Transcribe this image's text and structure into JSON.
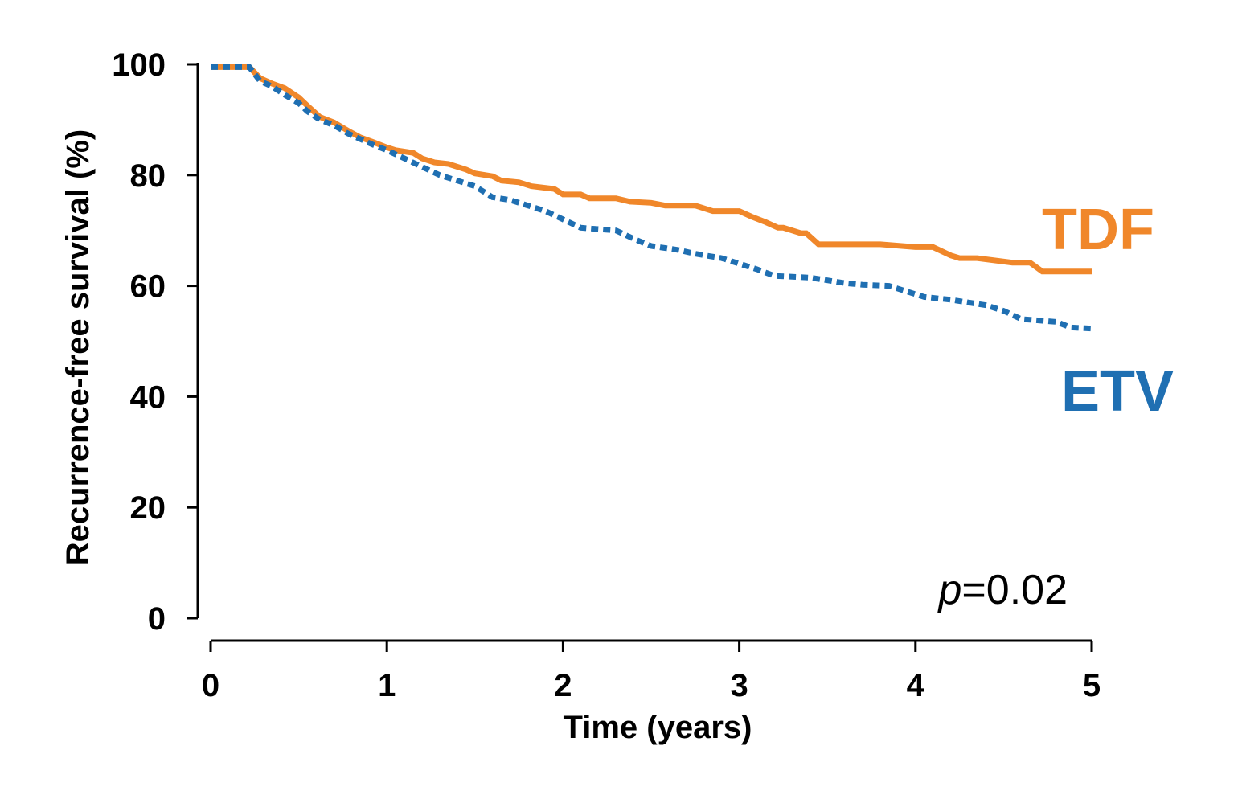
{
  "chart_data": {
    "type": "line",
    "title": "",
    "xlabel": "Time (years)",
    "ylabel": "Recurrence-free survival (%)",
    "xlim": [
      0,
      5
    ],
    "ylim": [
      0,
      100
    ],
    "xticks": [
      0,
      1,
      2,
      3,
      4,
      5
    ],
    "xtick_labels": [
      "0",
      "1",
      "2",
      "3",
      "4",
      "5"
    ],
    "yticks": [
      0,
      20,
      40,
      60,
      80,
      100
    ],
    "ytick_labels": [
      "0",
      "20",
      "40",
      "60",
      "80",
      "100"
    ],
    "grid": false,
    "annotation": {
      "italic": "p",
      "rest": "=0.02"
    },
    "series": [
      {
        "name": "TDF",
        "color": "#F0872A",
        "style": "solid",
        "x": [
          0,
          0.22,
          0.28,
          0.35,
          0.42,
          0.5,
          0.55,
          0.62,
          0.7,
          0.78,
          0.85,
          0.92,
          1.0,
          1.05,
          1.15,
          1.2,
          1.27,
          1.35,
          1.45,
          1.5,
          1.6,
          1.65,
          1.75,
          1.82,
          1.95,
          2.0,
          2.1,
          2.15,
          2.3,
          2.38,
          2.5,
          2.58,
          2.75,
          2.85,
          3.0,
          3.07,
          3.15,
          3.22,
          3.25,
          3.35,
          3.38,
          3.45,
          3.6,
          3.8,
          4.0,
          4.1,
          4.2,
          4.25,
          4.35,
          4.55,
          4.65,
          4.72,
          4.9,
          5.0
        ],
        "y": [
          99.5,
          99.5,
          97.5,
          96.5,
          95.7,
          94.0,
          92.5,
          90.5,
          89.5,
          88.0,
          86.8,
          86.0,
          85.0,
          84.5,
          84.0,
          83.0,
          82.3,
          82.0,
          81.0,
          80.3,
          79.8,
          79.0,
          78.7,
          78.0,
          77.5,
          76.5,
          76.5,
          75.8,
          75.8,
          75.2,
          75.0,
          74.5,
          74.5,
          73.5,
          73.5,
          72.5,
          71.5,
          70.5,
          70.5,
          69.5,
          69.5,
          67.5,
          67.5,
          67.5,
          67.0,
          67.0,
          65.5,
          65.0,
          65.0,
          64.2,
          64.2,
          62.6,
          62.6,
          62.6
        ]
      },
      {
        "name": "ETV",
        "color": "#1F6FB2",
        "style": "dotted",
        "x": [
          0,
          0.22,
          0.28,
          0.35,
          0.42,
          0.5,
          0.55,
          0.62,
          0.7,
          0.78,
          0.85,
          0.92,
          1.0,
          1.1,
          1.2,
          1.3,
          1.4,
          1.5,
          1.6,
          1.7,
          1.8,
          1.9,
          2.0,
          2.1,
          2.3,
          2.4,
          2.5,
          2.65,
          2.75,
          2.9,
          3.0,
          3.1,
          3.2,
          3.4,
          3.5,
          3.6,
          3.7,
          3.85,
          3.95,
          4.05,
          4.2,
          4.4,
          4.5,
          4.6,
          4.8,
          4.88,
          5.0
        ],
        "y": [
          99.5,
          99.5,
          97.0,
          96.0,
          94.5,
          93.0,
          91.5,
          90.0,
          89.0,
          87.5,
          86.5,
          85.5,
          84.5,
          83.0,
          81.5,
          80.0,
          79.0,
          78.0,
          76.0,
          75.5,
          74.5,
          73.5,
          72.0,
          70.5,
          70.0,
          68.5,
          67.2,
          66.5,
          65.8,
          65.0,
          64.0,
          63.0,
          61.8,
          61.5,
          61.0,
          60.5,
          60.2,
          60.0,
          59.0,
          58.0,
          57.5,
          56.5,
          55.5,
          54.0,
          53.5,
          52.5,
          52.3
        ]
      }
    ]
  }
}
